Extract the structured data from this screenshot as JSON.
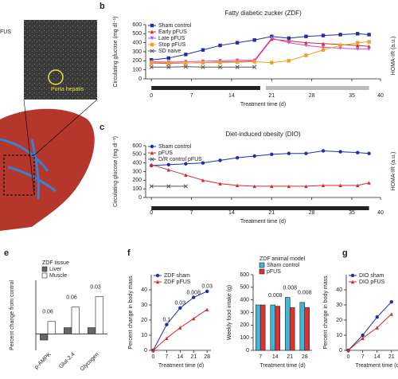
{
  "panel_labels": [
    "b",
    "c",
    "e",
    "f",
    "g"
  ],
  "image_labels": {
    "fus": "FUS",
    "porta": "Porta hepatis",
    "homa_b": "HOMA-IR (a.u.)",
    "homa_c": "HOMA-IR (a.u.)"
  },
  "chart_data": [
    {
      "type": "line",
      "title": "Fatty diabetic zucker (ZDF)",
      "x_label": "Treatment time (d)",
      "y_label": "Circulating glucose (mg dl⁻¹)",
      "x": [
        0,
        3,
        6,
        9,
        12,
        15,
        18,
        21,
        24,
        27,
        30,
        33,
        36,
        38
      ],
      "series": [
        {
          "name": "Sham control",
          "color": "#1f2fa8",
          "marker": "square",
          "values": [
            210,
            230,
            270,
            320,
            370,
            400,
            430,
            470,
            450,
            470,
            480,
            490,
            500,
            490
          ]
        },
        {
          "name": "Early pFUS",
          "color": "#d42a2a",
          "marker": "triangle",
          "values": [
            175,
            170,
            175,
            180,
            185,
            190,
            195,
            440,
            420,
            400,
            390,
            380,
            370,
            360
          ]
        },
        {
          "name": "Late pFUS",
          "color": "#d24bd6",
          "marker": "triangle-down",
          "values": [
            190,
            185,
            190,
            195,
            200,
            205,
            205,
            450,
            400,
            370,
            350,
            340,
            330,
            330
          ]
        },
        {
          "name": "Stop pFUS",
          "color": "#f0a020",
          "marker": "square",
          "values": [
            180,
            175,
            175,
            180,
            180,
            185,
            190,
            180,
            200,
            260,
            320,
            370,
            400,
            410
          ]
        },
        {
          "name": "SD naive",
          "color": "#555555",
          "marker": "x",
          "values": [
            130,
            130,
            135,
            130,
            130,
            130,
            130,
            null,
            null,
            null,
            null,
            null,
            null,
            null
          ]
        }
      ],
      "treatment_periods": [
        {
          "start": 0,
          "end": 19,
          "color": "#222222"
        },
        {
          "start": 20,
          "end": 38,
          "color": "#bbbbbb"
        }
      ],
      "xlim": [
        -1,
        40
      ],
      "ylim": [
        0,
        600
      ],
      "xticks": [
        0,
        7,
        14,
        21,
        28,
        35,
        40
      ],
      "yticks": [
        0,
        100,
        200,
        300,
        400,
        500,
        600
      ]
    },
    {
      "type": "line",
      "title": "Diet-induced obesity (DIO)",
      "x_label": "Treatment time (d)",
      "y_label": "Circulating glucose (mg dl⁻¹)",
      "x": [
        0,
        3,
        6,
        9,
        12,
        15,
        18,
        21,
        24,
        27,
        30,
        33,
        36,
        38
      ],
      "series": [
        {
          "name": "Sham control",
          "color": "#1f2fa8",
          "marker": "circle",
          "values": [
            370,
            380,
            390,
            400,
            430,
            460,
            480,
            500,
            510,
            510,
            540,
            530,
            520,
            510
          ]
        },
        {
          "name": "pFUS",
          "color": "#d42a2a",
          "marker": "triangle",
          "values": [
            380,
            320,
            260,
            200,
            160,
            140,
            130,
            130,
            130,
            130,
            140,
            140,
            140,
            170
          ]
        },
        {
          "name": "D/R control pFUS",
          "color": "#555555",
          "marker": "x",
          "values": [
            130,
            130,
            130,
            null,
            null,
            null,
            null,
            null,
            null,
            null,
            null,
            null,
            null,
            null
          ]
        }
      ],
      "treatment_periods": [
        {
          "start": 0,
          "end": 38,
          "color": "#222222"
        }
      ],
      "xlim": [
        -1,
        40
      ],
      "ylim": [
        0,
        600
      ],
      "xticks": [
        0,
        7,
        14,
        21,
        28,
        35,
        40
      ],
      "yticks": [
        0,
        100,
        200,
        300,
        400,
        500,
        600
      ]
    },
    {
      "type": "bar",
      "legend_title": "ZDF tissue",
      "y_label": "Percent change from control",
      "categories": [
        "p-AMPK",
        "Glut-2,4",
        "Glycogen"
      ],
      "series": [
        {
          "name": "Liver",
          "color": "#666666",
          "values": [
            -15,
            15,
            15
          ]
        },
        {
          "name": "Muscle",
          "color": "#ffffff",
          "values": [
            30,
            65,
            90
          ]
        }
      ],
      "annotations": [
        {
          "text": "0.06",
          "category": "p-AMPK"
        },
        {
          "text": "0.06",
          "category": "Glut-2,4"
        },
        {
          "text": "0.03",
          "category": "Glycogen"
        }
      ],
      "ylim": [
        -40,
        130
      ]
    },
    {
      "type": "line",
      "x_label": "Treatment time (d)",
      "y_label": "Percent change in body mass",
      "x": [
        0,
        7,
        14,
        21,
        28
      ],
      "series": [
        {
          "name": "ZDF sham",
          "color": "#1f2fa8",
          "marker": "circle",
          "values": [
            0,
            17,
            28,
            35,
            39
          ]
        },
        {
          "name": "ZDF pFUS",
          "color": "#d42a2a",
          "marker": "triangle",
          "values": [
            0,
            8,
            15,
            21,
            27
          ]
        }
      ],
      "annotations": [
        {
          "text": "0.1",
          "x": 7
        },
        {
          "text": "0.03",
          "x": 14
        },
        {
          "text": "0.008",
          "x": 21
        },
        {
          "text": "0.03",
          "x": 28
        }
      ],
      "xlim": [
        -1,
        30
      ],
      "ylim": [
        0,
        50
      ],
      "xticks": [
        0,
        7,
        14,
        21,
        28
      ],
      "yticks": [
        0,
        10,
        20,
        30,
        40
      ]
    },
    {
      "type": "bar",
      "legend_title": "ZDF animal model",
      "x_label": "Treatment time (d)",
      "y_label": "Weekly food intake (g)",
      "categories": [
        "7",
        "14",
        "21",
        "28"
      ],
      "series": [
        {
          "name": "Sham control",
          "color": "#3fb7d9",
          "values": [
            360,
            360,
            420,
            380
          ]
        },
        {
          "name": "pFUS",
          "color": "#e03030",
          "values": [
            360,
            350,
            340,
            340
          ]
        }
      ],
      "annotations": [
        {
          "text": "0.008",
          "category": "14"
        },
        {
          "text": "0.008",
          "category": "21"
        },
        {
          "text": "0.008",
          "category": "28"
        }
      ],
      "ylim": [
        0,
        600
      ],
      "yticks": [
        0,
        100,
        200,
        300,
        400,
        500,
        600
      ]
    },
    {
      "type": "line",
      "x_label": "Treatment time (d)",
      "y_label": "Percent change in body mass",
      "x": [
        0,
        7,
        14,
        21
      ],
      "series": [
        {
          "name": "DIO sham",
          "color": "#1f2fa8",
          "marker": "circle",
          "values": [
            0,
            10,
            22,
            32
          ]
        },
        {
          "name": "DIO pFUS",
          "color": "#d42a2a",
          "marker": "triangle",
          "values": [
            0,
            8,
            15,
            24
          ]
        }
      ],
      "xlim": [
        -1,
        30
      ],
      "ylim": [
        0,
        50
      ],
      "xticks": [
        0,
        7,
        14,
        21
      ],
      "yticks": [
        0,
        10,
        20,
        30,
        40
      ]
    }
  ]
}
